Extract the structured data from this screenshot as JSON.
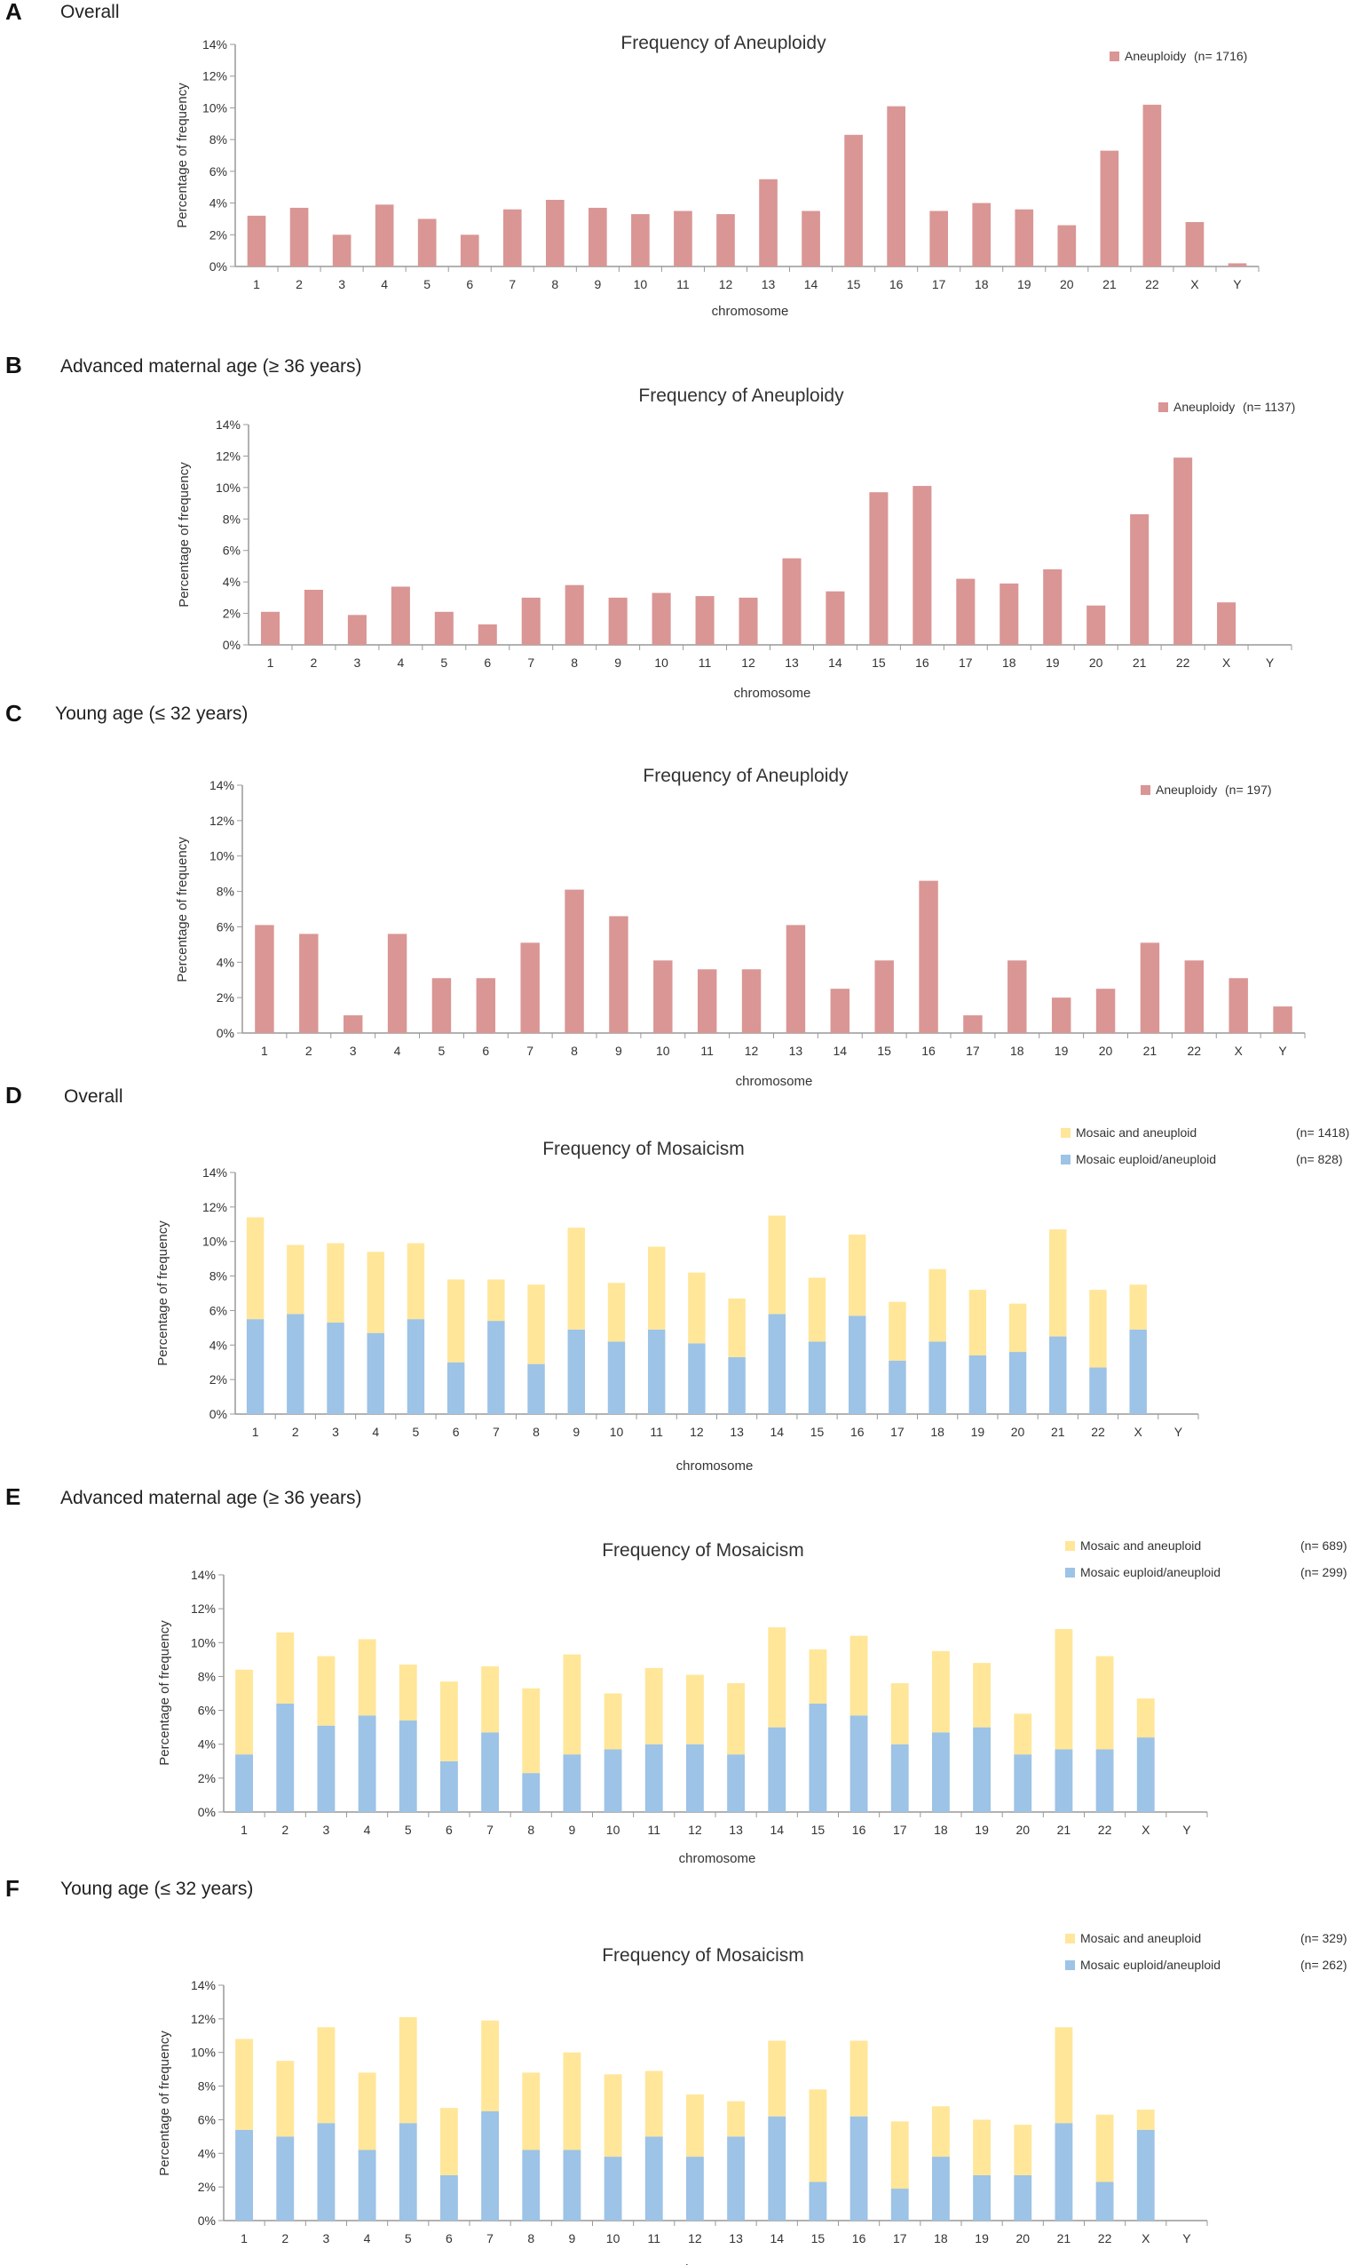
{
  "panels": [
    {
      "letter": "A",
      "heading": "Overall",
      "chart_data": {
        "type": "bar",
        "title": "Frequency of Aneuploidy",
        "xlabel": "chromosome",
        "ylabel": "Percentage of frequency",
        "ylim": [
          0,
          14
        ],
        "yticks": [
          "0%",
          "2%",
          "4%",
          "6%",
          "8%",
          "10%",
          "12%",
          "14%"
        ],
        "categories": [
          "1",
          "2",
          "3",
          "4",
          "5",
          "6",
          "7",
          "8",
          "9",
          "10",
          "11",
          "12",
          "13",
          "14",
          "15",
          "16",
          "17",
          "18",
          "19",
          "20",
          "21",
          "22",
          "X",
          "Y"
        ],
        "series": [
          {
            "name": "Aneuploidy",
            "n_label": "(n= 1716)",
            "color": "#d99694",
            "values": [
              3.2,
              3.7,
              2.0,
              3.9,
              3.0,
              2.0,
              3.6,
              4.2,
              3.7,
              3.3,
              3.5,
              3.3,
              5.5,
              3.5,
              8.3,
              10.1,
              3.5,
              4.0,
              3.6,
              2.6,
              7.3,
              10.2,
              2.8,
              0.2
            ]
          }
        ]
      }
    },
    {
      "letter": "B",
      "heading": "Advanced maternal age (≥ 36 years)",
      "chart_data": {
        "type": "bar",
        "title": "Frequency of Aneuploidy",
        "xlabel": "chromosome",
        "ylabel": "Percentage of frequency",
        "ylim": [
          0,
          14
        ],
        "yticks": [
          "0%",
          "2%",
          "4%",
          "6%",
          "8%",
          "10%",
          "12%",
          "14%"
        ],
        "categories": [
          "1",
          "2",
          "3",
          "4",
          "5",
          "6",
          "7",
          "8",
          "9",
          "10",
          "11",
          "12",
          "13",
          "14",
          "15",
          "16",
          "17",
          "18",
          "19",
          "20",
          "21",
          "22",
          "X",
          "Y"
        ],
        "series": [
          {
            "name": "Aneuploidy",
            "n_label": "(n= 1137)",
            "color": "#d99694",
            "values": [
              2.1,
              3.5,
              1.9,
              3.7,
              2.1,
              1.3,
              3.0,
              3.8,
              3.0,
              3.3,
              3.1,
              3.0,
              5.5,
              3.4,
              9.7,
              10.1,
              4.2,
              3.9,
              4.8,
              2.5,
              8.3,
              11.9,
              2.7,
              0.0
            ]
          }
        ]
      }
    },
    {
      "letter": "C",
      "heading": "Young age (≤ 32 years)",
      "chart_data": {
        "type": "bar",
        "title": "Frequency of Aneuploidy",
        "xlabel": "chromosome",
        "ylabel": "Percentage of frequency",
        "ylim": [
          0,
          14
        ],
        "yticks": [
          "0%",
          "2%",
          "4%",
          "6%",
          "8%",
          "10%",
          "12%",
          "14%"
        ],
        "categories": [
          "1",
          "2",
          "3",
          "4",
          "5",
          "6",
          "7",
          "8",
          "9",
          "10",
          "11",
          "12",
          "13",
          "14",
          "15",
          "16",
          "17",
          "18",
          "19",
          "20",
          "21",
          "22",
          "X",
          "Y"
        ],
        "series": [
          {
            "name": "Aneuploidy",
            "n_label": "(n= 197)",
            "color": "#d99694",
            "values": [
              6.1,
              5.6,
              1.0,
              5.6,
              3.1,
              3.1,
              5.1,
              8.1,
              6.6,
              4.1,
              3.6,
              3.6,
              6.1,
              2.5,
              4.1,
              8.6,
              1.0,
              4.1,
              2.0,
              2.5,
              5.1,
              4.1,
              3.1,
              1.5
            ]
          }
        ]
      }
    },
    {
      "letter": "D",
      "heading": "Overall",
      "chart_data": {
        "type": "bar",
        "stacked": true,
        "title": "Frequency of Mosaicism",
        "xlabel": "chromosome",
        "ylabel": "Percentage of frequency",
        "ylim": [
          0,
          14
        ],
        "yticks": [
          "0%",
          "2%",
          "4%",
          "6%",
          "8%",
          "10%",
          "12%",
          "14%"
        ],
        "categories": [
          "1",
          "2",
          "3",
          "4",
          "5",
          "6",
          "7",
          "8",
          "9",
          "10",
          "11",
          "12",
          "13",
          "14",
          "15",
          "16",
          "17",
          "18",
          "19",
          "20",
          "21",
          "22",
          "X",
          "Y"
        ],
        "series": [
          {
            "name": "Mosaic euploid/aneuploid",
            "n_label": "(n= 828)",
            "color": "#9dc3e6",
            "values": [
              5.5,
              5.8,
              5.3,
              4.7,
              5.5,
              3.0,
              5.4,
              2.9,
              4.9,
              4.2,
              4.9,
              4.1,
              3.3,
              5.8,
              4.2,
              5.7,
              3.1,
              4.2,
              3.4,
              3.6,
              4.5,
              2.7,
              4.9,
              0
            ]
          },
          {
            "name": "Mosaic and aneuploid",
            "n_label": "(n= 1418)",
            "color": "#ffe699",
            "values": [
              5.9,
              4.0,
              4.6,
              4.7,
              4.4,
              4.8,
              2.4,
              4.6,
              5.9,
              3.4,
              4.8,
              4.1,
              3.4,
              5.7,
              3.7,
              4.7,
              3.4,
              4.2,
              3.8,
              2.8,
              6.2,
              4.5,
              2.6,
              0
            ]
          }
        ]
      }
    },
    {
      "letter": "E",
      "heading": "Advanced maternal age (≥ 36 years)",
      "chart_data": {
        "type": "bar",
        "stacked": true,
        "title": "Frequency of Mosaicism",
        "xlabel": "chromosome",
        "ylabel": "Percentage of frequency",
        "ylim": [
          0,
          14
        ],
        "yticks": [
          "0%",
          "2%",
          "4%",
          "6%",
          "8%",
          "10%",
          "12%",
          "14%"
        ],
        "categories": [
          "1",
          "2",
          "3",
          "4",
          "5",
          "6",
          "7",
          "8",
          "9",
          "10",
          "11",
          "12",
          "13",
          "14",
          "15",
          "16",
          "17",
          "18",
          "19",
          "20",
          "21",
          "22",
          "X",
          "Y"
        ],
        "series": [
          {
            "name": "Mosaic euploid/aneuploid",
            "n_label": "(n= 299)",
            "color": "#9dc3e6",
            "values": [
              3.4,
              6.4,
              5.1,
              5.7,
              5.4,
              3.0,
              4.7,
              2.3,
              3.4,
              3.7,
              4.0,
              4.0,
              3.4,
              5.0,
              6.4,
              5.7,
              4.0,
              4.7,
              5.0,
              3.4,
              3.7,
              3.7,
              4.4,
              0
            ]
          },
          {
            "name": "Mosaic and aneuploid",
            "n_label": "(n= 689)",
            "color": "#ffe699",
            "values": [
              5.0,
              4.2,
              4.1,
              4.5,
              3.3,
              4.7,
              3.9,
              5.0,
              5.9,
              3.3,
              4.5,
              4.1,
              4.2,
              5.9,
              3.2,
              4.7,
              3.6,
              4.8,
              3.8,
              2.4,
              7.1,
              5.5,
              2.3,
              0
            ]
          }
        ]
      }
    },
    {
      "letter": "F",
      "heading": "Young age (≤ 32 years)",
      "chart_data": {
        "type": "bar",
        "stacked": true,
        "title": "Frequency of Mosaicism",
        "xlabel": "chromosome",
        "ylabel": "Percentage of frequency",
        "ylim": [
          0,
          14
        ],
        "yticks": [
          "0%",
          "2%",
          "4%",
          "6%",
          "8%",
          "10%",
          "12%",
          "14%"
        ],
        "categories": [
          "1",
          "2",
          "3",
          "4",
          "5",
          "6",
          "7",
          "8",
          "9",
          "10",
          "11",
          "12",
          "13",
          "14",
          "15",
          "16",
          "17",
          "18",
          "19",
          "20",
          "21",
          "22",
          "X",
          "Y"
        ],
        "series": [
          {
            "name": "Mosaic euploid/aneuploid",
            "n_label": "(n= 262)",
            "color": "#9dc3e6",
            "values": [
              5.4,
              5.0,
              5.8,
              4.2,
              5.8,
              2.7,
              6.5,
              4.2,
              4.2,
              3.8,
              5.0,
              3.8,
              5.0,
              6.2,
              2.3,
              6.2,
              1.9,
              3.8,
              2.7,
              2.7,
              5.8,
              2.3,
              5.4,
              0
            ]
          },
          {
            "name": "Mosaic and aneuploid",
            "n_label": "(n= 329)",
            "color": "#ffe699",
            "values": [
              5.4,
              4.5,
              5.7,
              4.6,
              6.3,
              4.0,
              5.4,
              4.6,
              5.8,
              4.9,
              3.9,
              3.7,
              2.1,
              4.5,
              5.5,
              4.5,
              4.0,
              3.0,
              3.3,
              3.0,
              5.7,
              4.0,
              1.2,
              0
            ]
          }
        ]
      }
    }
  ]
}
